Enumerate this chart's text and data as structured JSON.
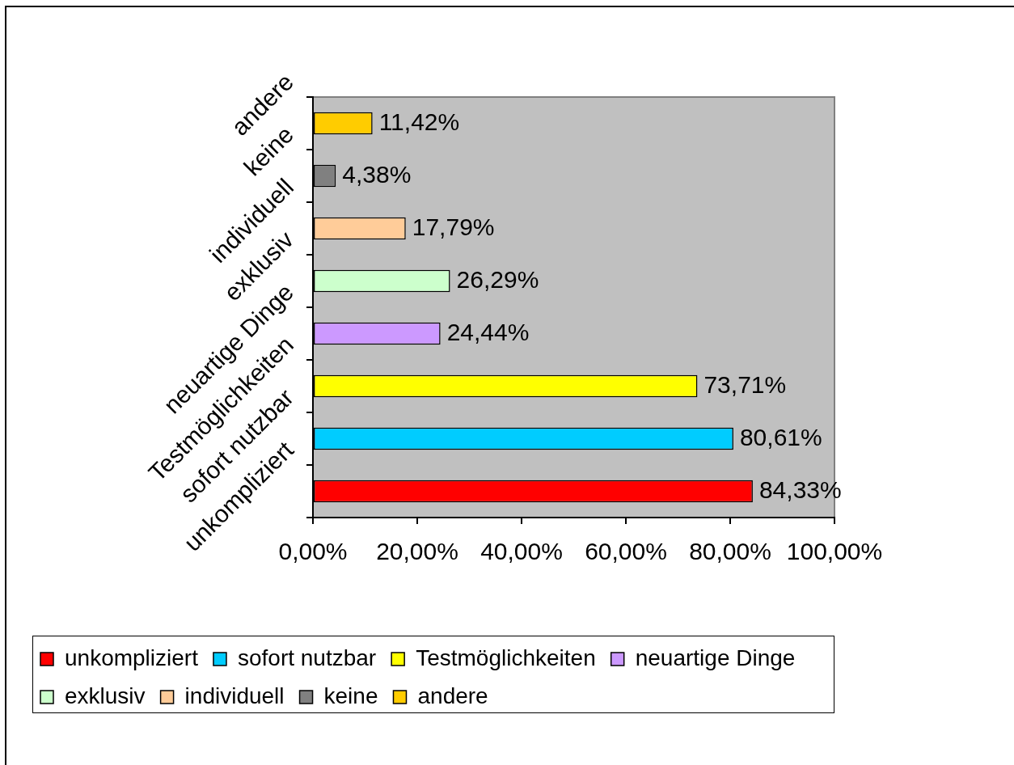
{
  "chart_data": {
    "type": "bar",
    "orientation": "horizontal",
    "stacked": true,
    "categories": [
      "andere",
      "keine",
      "individuell",
      "exklusiv",
      "neuartige Dinge",
      "Testmöglichkeiten",
      "sofort nutzbar",
      "unkompliziert"
    ],
    "series": [
      {
        "name": "unkompliziert",
        "color": "#ff0000",
        "values": [
          null,
          null,
          null,
          null,
          null,
          null,
          null,
          84.33
        ],
        "value_labels": [
          null,
          null,
          null,
          null,
          null,
          null,
          null,
          "84,33%"
        ]
      },
      {
        "name": "sofort nutzbar",
        "color": "#00ccff",
        "values": [
          null,
          null,
          null,
          null,
          null,
          null,
          80.61,
          null
        ],
        "value_labels": [
          null,
          null,
          null,
          null,
          null,
          null,
          "80,61%",
          null
        ]
      },
      {
        "name": "Testmöglichkeiten",
        "color": "#ffff00",
        "values": [
          null,
          null,
          null,
          null,
          null,
          73.71,
          null,
          null
        ],
        "value_labels": [
          null,
          null,
          null,
          null,
          null,
          "73,71%",
          null,
          null
        ]
      },
      {
        "name": "neuartige Dinge",
        "color": "#cc99ff",
        "values": [
          null,
          null,
          null,
          null,
          24.44,
          null,
          null,
          null
        ],
        "value_labels": [
          null,
          null,
          null,
          null,
          "24,44%",
          null,
          null,
          null
        ]
      },
      {
        "name": "exklusiv",
        "color": "#ccffcc",
        "values": [
          null,
          null,
          null,
          26.29,
          null,
          null,
          null,
          null
        ],
        "value_labels": [
          null,
          null,
          null,
          "26,29%",
          null,
          null,
          null,
          null
        ]
      },
      {
        "name": "individuell",
        "color": "#ffcc99",
        "values": [
          null,
          null,
          17.79,
          null,
          null,
          null,
          null,
          null
        ],
        "value_labels": [
          null,
          null,
          "17,79%",
          null,
          null,
          null,
          null,
          null
        ]
      },
      {
        "name": "keine",
        "color": "#808080",
        "values": [
          null,
          4.38,
          null,
          null,
          null,
          null,
          null,
          null
        ],
        "value_labels": [
          null,
          "4,38%",
          null,
          null,
          null,
          null,
          null,
          null
        ]
      },
      {
        "name": "andere",
        "color": "#ffcc00",
        "values": [
          11.42,
          null,
          null,
          null,
          null,
          null,
          null,
          null
        ],
        "value_labels": [
          "11,42%",
          null,
          null,
          null,
          null,
          null,
          null,
          null
        ]
      }
    ],
    "xlim": [
      0,
      100
    ],
    "xticks": [
      {
        "value": 0,
        "label": "0,00%"
      },
      {
        "value": 20,
        "label": "20,00%"
      },
      {
        "value": 40,
        "label": "40,00%"
      },
      {
        "value": 60,
        "label": "60,00%"
      },
      {
        "value": 80,
        "label": "80,00%"
      },
      {
        "value": 100,
        "label": "100,00%"
      }
    ],
    "grid": false,
    "legend": "bottom"
  }
}
